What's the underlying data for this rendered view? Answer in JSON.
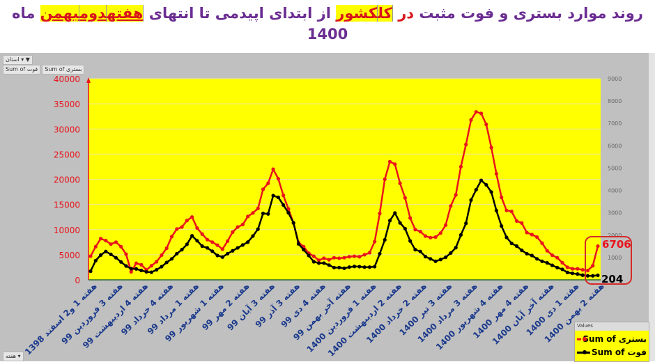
{
  "title": {
    "part1": "روند موارد بستری و فوت مثبت",
    "dar": "در",
    "kol": "کل",
    "keshvar": "کشور",
    "part2": "از ابتدای اپیدمی تا انتهای",
    "hafte": "هفته",
    "dovom": "دوم",
    "bahman": "بهمن",
    "part3": "ماه 1400"
  },
  "pivot": {
    "filter_label": "استان",
    "field_1": "Sum of فوت",
    "field_2": "Sum of بستری",
    "axis_field": "هفته"
  },
  "colors": {
    "hospitalized": "#e8141b",
    "deaths": "#000000",
    "plot_bg": "#ffff00",
    "highlight_box": "#d42a2a"
  },
  "chart_data": {
    "type": "line",
    "left_axis": {
      "ylim": [
        0,
        40000
      ],
      "ticks": [
        0,
        5000,
        10000,
        15000,
        20000,
        25000,
        30000,
        35000,
        40000
      ]
    },
    "right_axis": {
      "ylim": [
        0,
        9000
      ],
      "ticks": [
        1000,
        2000,
        3000,
        4000,
        5000,
        6000,
        7000,
        8000,
        9000
      ]
    },
    "grid": true,
    "legend": {
      "title": "Values",
      "position": "bottom-right"
    },
    "category_labels": [
      "هفته 1 و2 اسفند 1398",
      "هفته 3 فروردین 99",
      "هفته 4 اردیبهشت 99",
      "هفته 4 خرداد 99",
      "هفته 1 مرداد 99",
      "هفته 1 شهریور 99",
      "هفته 2 مهر 99",
      "هفته 3 آبان 99",
      "هفته 3 آذر 99",
      "هفته 4 دی 99",
      "هفته آخر بهمن 99",
      "هفته 1 فروردین 1400",
      "هفته 2 اردیبهشت 1400",
      "هفته 2 خرداد 1400",
      "هفته 3 تیر 1400",
      "هفته 3 مرداد 1400",
      "هفته 4 شهریور 1400",
      "هفته 4 مهر 1400",
      "هفته آخر آبان 1400",
      "هفته 1 دی 1400",
      "هفته 2 بهمن 1400"
    ],
    "series": [
      {
        "name": "Sum of بستری",
        "axis": "left",
        "values": [
          4700,
          6600,
          8200,
          7800,
          7100,
          7500,
          6600,
          5100,
          1600,
          3300,
          3000,
          2000,
          2800,
          3600,
          4900,
          6300,
          8600,
          10100,
          10500,
          11800,
          12500,
          10300,
          9100,
          8000,
          7500,
          6900,
          6100,
          7700,
          9500,
          10500,
          11000,
          12600,
          13300,
          14200,
          18000,
          19200,
          22000,
          20100,
          16800,
          14100,
          11300,
          7400,
          6600,
          5300,
          4700,
          3900,
          4300,
          4000,
          4400,
          4300,
          4400,
          4600,
          4700,
          4600,
          5000,
          5400,
          7600,
          13200,
          20000,
          23500,
          23000,
          19200,
          16300,
          12300,
          10000,
          9600,
          8700,
          8400,
          8500,
          9300,
          10900,
          14700,
          16900,
          22500,
          26900,
          31800,
          33400,
          33100,
          30900,
          26300,
          21100,
          16400,
          13800,
          13600,
          11700,
          11300,
          9400,
          9000,
          8500,
          7300,
          5800,
          4900,
          4400,
          3400,
          2500,
          2200,
          2200,
          2000,
          1850,
          2800,
          6706
        ]
      },
      {
        "name": "Sum of فوت",
        "axis": "right",
        "values": [
          385,
          860,
          1110,
          1270,
          1140,
          990,
          800,
          620,
          500,
          490,
          420,
          360,
          340,
          450,
          590,
          780,
          940,
          1170,
          1350,
          1590,
          1970,
          1750,
          1510,
          1430,
          1280,
          1090,
          1020,
          1170,
          1300,
          1430,
          1560,
          1690,
          1960,
          2270,
          2970,
          2950,
          3770,
          3690,
          3350,
          3000,
          2550,
          1610,
          1350,
          1090,
          810,
          750,
          750,
          660,
          550,
          550,
          520,
          570,
          600,
          590,
          570,
          570,
          590,
          1170,
          1790,
          2650,
          2990,
          2550,
          2290,
          1740,
          1350,
          1270,
          1040,
          940,
          830,
          910,
          1010,
          1200,
          1440,
          2010,
          2530,
          3570,
          4030,
          4450,
          4250,
          3930,
          3100,
          2410,
          1900,
          1630,
          1510,
          1320,
          1170,
          1090,
          940,
          830,
          760,
          650,
          550,
          470,
          330,
          290,
          260,
          210,
          180,
          180,
          204
        ]
      }
    ],
    "annotations": {
      "last_hospitalized": "6706",
      "last_deaths": "204"
    }
  }
}
